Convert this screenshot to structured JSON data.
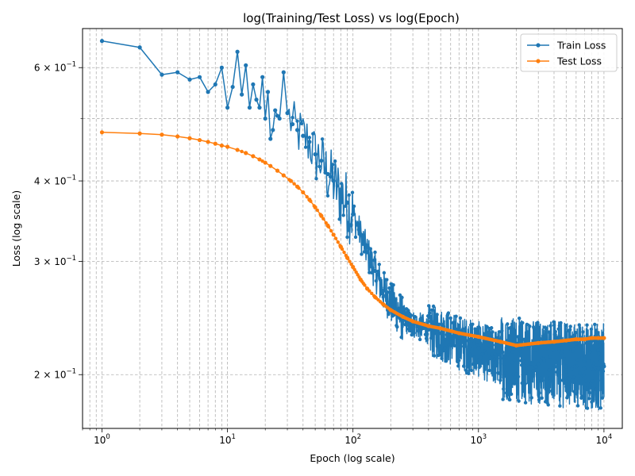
{
  "chart_data": {
    "type": "line",
    "title": "log(Training/Test Loss) vs log(Epoch)",
    "xlabel": "Epoch (log scale)",
    "ylabel": "Loss (log scale)",
    "x_scale": "log",
    "y_scale": "log",
    "xlim": [
      0.7,
      14000
    ],
    "ylim": [
      0.165,
      0.69
    ],
    "grid": "both (major and minor), dashed",
    "legend_position": "top-right",
    "x_ticks": [
      {
        "value": 1,
        "label": "10",
        "exp": "0"
      },
      {
        "value": 10,
        "label": "10",
        "exp": "1"
      },
      {
        "value": 100,
        "label": "10",
        "exp": "2"
      },
      {
        "value": 1000,
        "label": "10",
        "exp": "3"
      },
      {
        "value": 10000,
        "label": "10",
        "exp": "4"
      }
    ],
    "y_ticks": [
      {
        "value": 0.2,
        "label": "2 × 10",
        "exp": "−1"
      },
      {
        "value": 0.3,
        "label": "3 × 10",
        "exp": "−1"
      },
      {
        "value": 0.4,
        "label": "4 × 10",
        "exp": "−1"
      },
      {
        "value": 0.6,
        "label": "6 × 10",
        "exp": "−1"
      }
    ],
    "series": [
      {
        "name": "Train Loss",
        "color": "#1f77b4",
        "x": [
          1,
          2,
          3,
          4,
          5,
          6,
          7,
          8,
          9,
          10,
          11,
          12,
          13,
          14,
          15,
          16,
          17,
          18,
          19,
          20,
          21,
          22,
          23,
          24,
          25,
          26,
          28,
          30,
          33,
          36,
          40,
          45,
          50,
          56,
          63,
          70,
          80,
          90,
          100,
          115,
          130,
          150,
          175,
          200,
          250,
          300,
          400,
          500,
          700,
          1000,
          1500,
          2000,
          3000,
          4000,
          5000,
          6000,
          7000,
          8000,
          9000,
          10000
        ],
        "y": [
          0.66,
          0.645,
          0.585,
          0.59,
          0.575,
          0.58,
          0.55,
          0.565,
          0.6,
          0.52,
          0.56,
          0.635,
          0.545,
          0.605,
          0.52,
          0.565,
          0.535,
          0.52,
          0.58,
          0.5,
          0.55,
          0.465,
          0.48,
          0.515,
          0.505,
          0.5,
          0.59,
          0.51,
          0.49,
          0.48,
          0.47,
          0.46,
          0.44,
          0.43,
          0.41,
          0.4,
          0.38,
          0.37,
          0.355,
          0.33,
          0.31,
          0.29,
          0.27,
          0.26,
          0.245,
          0.24,
          0.235,
          0.232,
          0.225,
          0.22,
          0.212,
          0.21,
          0.208,
          0.207,
          0.206,
          0.206,
          0.205,
          0.205,
          0.205,
          0.206
        ]
      },
      {
        "name": "Test Loss",
        "color": "#ff7f0e",
        "x": [
          1,
          2,
          3,
          4,
          5,
          6,
          7,
          8,
          9,
          10,
          12,
          14,
          16,
          18,
          20,
          22,
          25,
          28,
          32,
          36,
          40,
          45,
          50,
          56,
          63,
          70,
          80,
          90,
          100,
          115,
          130,
          150,
          175,
          200,
          250,
          300,
          400,
          500,
          700,
          1000,
          1500,
          2000,
          3000,
          4000,
          5000,
          6000,
          7000,
          8000,
          9000,
          10000
        ],
        "y": [
          0.476,
          0.474,
          0.472,
          0.469,
          0.466,
          0.463,
          0.46,
          0.457,
          0.454,
          0.452,
          0.447,
          0.442,
          0.437,
          0.432,
          0.427,
          0.422,
          0.415,
          0.408,
          0.4,
          0.392,
          0.384,
          0.374,
          0.364,
          0.353,
          0.341,
          0.33,
          0.316,
          0.304,
          0.294,
          0.281,
          0.272,
          0.264,
          0.257,
          0.252,
          0.246,
          0.242,
          0.238,
          0.236,
          0.232,
          0.229,
          0.225,
          0.222,
          0.224,
          0.225,
          0.226,
          0.227,
          0.227,
          0.228,
          0.228,
          0.228
        ]
      }
    ]
  }
}
